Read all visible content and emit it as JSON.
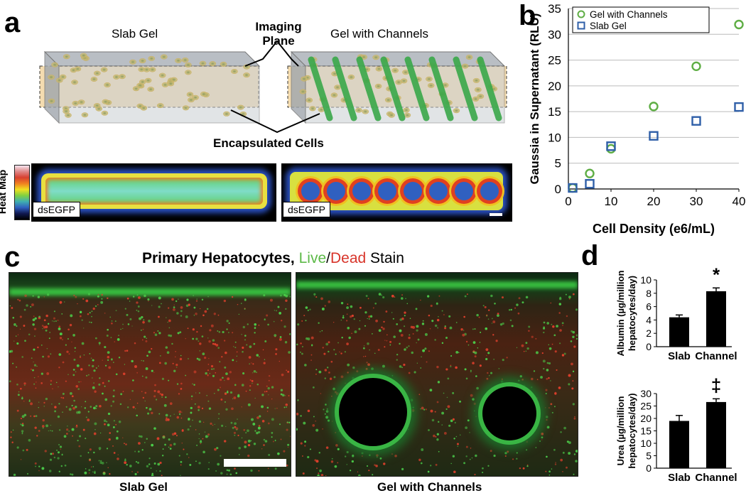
{
  "panels": {
    "a": "a",
    "b": "b",
    "c": "c",
    "d": "d"
  },
  "panel_a": {
    "slab_title": "Slab Gel",
    "channels_title": "Gel with Channels",
    "imaging_plane_line1": "Imaging",
    "imaging_plane_line2": "Plane",
    "encapsulated_cells": "Encapsulated Cells",
    "heat_map_label": "Heat Map",
    "dsegfp_left": "dsEGFP",
    "dsegfp_right": "dsEGFP"
  },
  "panel_c": {
    "title_prefix": "Primary Hepatocytes, ",
    "title_live": "Live",
    "title_sep": "/",
    "title_dead": "Dead",
    "title_suffix": " Stain",
    "left_caption": "Slab Gel",
    "right_caption": "Gel with Channels"
  },
  "colors": {
    "green": "#5fae45",
    "blue": "#2f5fa8",
    "live": "#5cb947",
    "dead": "#d8342a"
  },
  "chart_data": [
    {
      "type": "scatter",
      "xlabel": "Cell Density (e6/mL)",
      "ylabel": "Gaussia in Supernatant (RLU)",
      "xlim": [
        0,
        40
      ],
      "ylim": [
        0,
        35
      ],
      "xticks": [
        0,
        10,
        20,
        30,
        40
      ],
      "yticks": [
        0,
        5,
        10,
        15,
        20,
        25,
        30,
        35
      ],
      "grid": true,
      "legend": "top-left",
      "series": [
        {
          "name": "Gel with Channels",
          "marker": "circle",
          "color": "#5fae45",
          "x": [
            1,
            5,
            10,
            20,
            30,
            40
          ],
          "y": [
            0.2,
            3.0,
            7.8,
            16.0,
            23.8,
            31.9
          ]
        },
        {
          "name": "Slab Gel",
          "marker": "square",
          "color": "#2f5fa8",
          "x": [
            1,
            5,
            10,
            20,
            30,
            40
          ],
          "y": [
            0.2,
            1.0,
            8.3,
            10.3,
            13.2,
            15.9
          ]
        }
      ]
    },
    {
      "type": "bar",
      "ylabel_line1": "Albumin (µg/million",
      "ylabel_line2": "hepatocytes/day)",
      "categories": [
        "Slab",
        "Channel"
      ],
      "values": [
        4.4,
        8.3
      ],
      "errors": [
        0.35,
        0.5
      ],
      "ylim": [
        0,
        10
      ],
      "yticks": [
        0,
        2,
        4,
        6,
        8,
        10
      ],
      "annotation": "*"
    },
    {
      "type": "bar",
      "ylabel_line1": "Urea (µg/million",
      "ylabel_line2": "hepatocytes/day)",
      "categories": [
        "Slab",
        "Channel"
      ],
      "values": [
        19,
        26.6
      ],
      "errors": [
        2.2,
        1.3
      ],
      "ylim": [
        0,
        30
      ],
      "yticks": [
        0,
        5,
        10,
        15,
        20,
        25,
        30
      ],
      "annotation": "‡"
    }
  ]
}
